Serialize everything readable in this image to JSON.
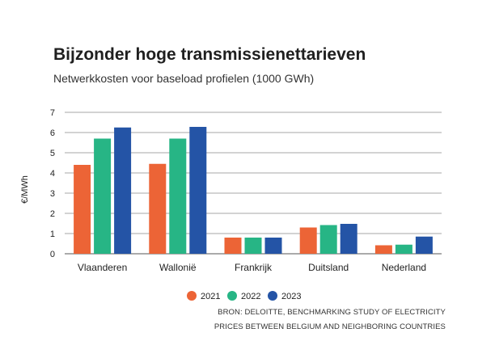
{
  "title": "Bijzonder hoge transmissienettarieven",
  "subtitle": "Netwerkkosten voor baseload profielen (1000 GWh)",
  "source_line1": "BRON: DELOITTE, BENCHMARKING STUDY OF ELECTRICITY",
  "source_line2": "PRICES BETWEEN BELGIUM AND NEIGHBORING COUNTRIES",
  "chart_data": {
    "type": "bar",
    "title": "Bijzonder hoge transmissienettarieven",
    "subtitle": "Netwerkkosten voor baseload profielen (1000 GWh)",
    "xlabel": "",
    "ylabel": "€/MWh",
    "ylim": [
      0,
      7
    ],
    "yticks": [
      "0",
      "1",
      "2",
      "3",
      "4",
      "5",
      "6",
      "7"
    ],
    "grid": true,
    "legend_position": "bottom",
    "categories": [
      "Vlaanderen",
      "Wallonië",
      "Frankrijk",
      "Duitsland",
      "Nederland"
    ],
    "series": [
      {
        "name": "2021",
        "color": "#ec6436",
        "values": [
          4.4,
          4.45,
          0.8,
          1.3,
          0.42
        ]
      },
      {
        "name": "2022",
        "color": "#27b585",
        "values": [
          5.7,
          5.7,
          0.8,
          1.42,
          0.45
        ]
      },
      {
        "name": "2023",
        "color": "#2454a6",
        "values": [
          6.25,
          6.28,
          0.8,
          1.48,
          0.85
        ]
      }
    ]
  }
}
